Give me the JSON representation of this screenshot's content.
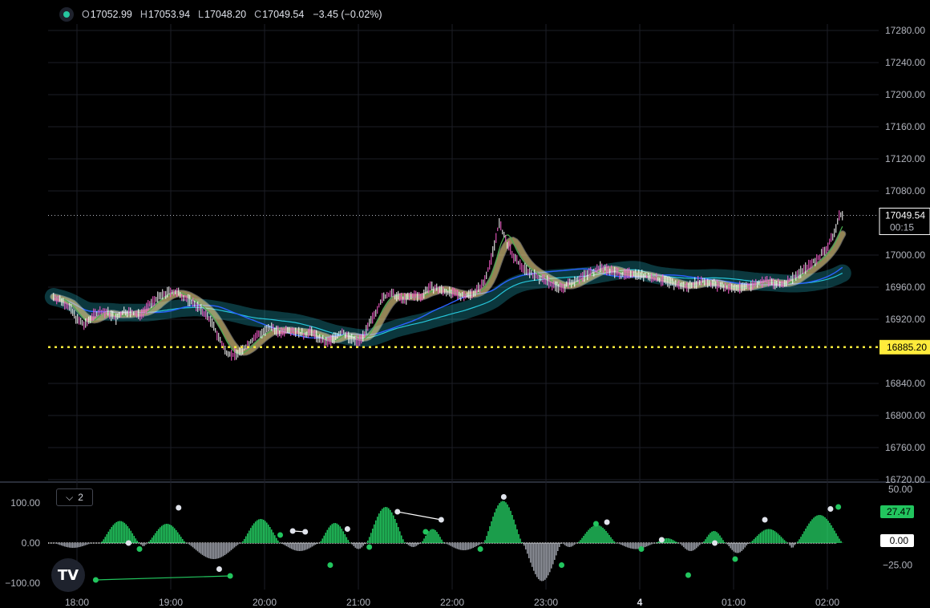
{
  "legend": {
    "o_label": "O",
    "o_value": "17052.99",
    "h_label": "H",
    "h_value": "17053.94",
    "l_label": "L",
    "l_value": "17048.20",
    "c_label": "C",
    "c_value": "17049.54",
    "change": "−3.45 (−0.02%)"
  },
  "pane_toggle": {
    "count": "2"
  },
  "logo": {
    "text": "TV"
  },
  "chart_data": [
    {
      "type": "line",
      "name": "price",
      "y_axis_ticks": [
        "17280.00",
        "17240.00",
        "17200.00",
        "17160.00",
        "17120.00",
        "17080.00",
        "17000.00",
        "16960.00",
        "16920.00",
        "16840.00",
        "16800.00",
        "16760.00",
        "16720.00"
      ],
      "y_range": [
        16720,
        17280
      ],
      "x_axis_ticks": [
        "18:00",
        "19:00",
        "20:00",
        "21:00",
        "22:00",
        "23:00",
        "4",
        "01:00",
        "02:00"
      ],
      "last_price_label": "17049.54",
      "countdown_label": "00:15",
      "support_level": 16885.2,
      "support_label": "16885.20",
      "price_path": [
        [
          "17:45",
          16948
        ],
        [
          "17:50",
          16943
        ],
        [
          "17:55",
          16935
        ],
        [
          "18:00",
          16920
        ],
        [
          "18:05",
          16912
        ],
        [
          "18:10",
          16925
        ],
        [
          "18:15",
          16930
        ],
        [
          "18:20",
          16928
        ],
        [
          "18:25",
          16920
        ],
        [
          "18:30",
          16930
        ],
        [
          "18:35",
          16928
        ],
        [
          "18:40",
          16925
        ],
        [
          "18:45",
          16935
        ],
        [
          "18:50",
          16945
        ],
        [
          "18:55",
          16950
        ],
        [
          "19:00",
          16955
        ],
        [
          "19:05",
          16952
        ],
        [
          "19:10",
          16945
        ],
        [
          "19:15",
          16940
        ],
        [
          "19:20",
          16930
        ],
        [
          "19:25",
          16920
        ],
        [
          "19:30",
          16900
        ],
        [
          "19:35",
          16880
        ],
        [
          "19:40",
          16875
        ],
        [
          "19:45",
          16880
        ],
        [
          "19:50",
          16890
        ],
        [
          "19:55",
          16900
        ],
        [
          "20:00",
          16905
        ],
        [
          "20:05",
          16910
        ],
        [
          "20:10",
          16902
        ],
        [
          "20:15",
          16908
        ],
        [
          "20:20",
          16905
        ],
        [
          "20:25",
          16900
        ],
        [
          "20:30",
          16905
        ],
        [
          "20:35",
          16895
        ],
        [
          "20:40",
          16890
        ],
        [
          "20:45",
          16898
        ],
        [
          "20:50",
          16905
        ],
        [
          "20:55",
          16895
        ],
        [
          "21:00",
          16892
        ],
        [
          "21:05",
          16905
        ],
        [
          "21:10",
          16925
        ],
        [
          "21:15",
          16945
        ],
        [
          "21:20",
          16952
        ],
        [
          "21:25",
          16948
        ],
        [
          "21:30",
          16945
        ],
        [
          "21:35",
          16950
        ],
        [
          "21:40",
          16948
        ],
        [
          "21:45",
          16960
        ],
        [
          "21:50",
          16958
        ],
        [
          "21:55",
          16955
        ],
        [
          "22:00",
          16952
        ],
        [
          "22:05",
          16950
        ],
        [
          "22:10",
          16950
        ],
        [
          "22:15",
          16955
        ],
        [
          "22:20",
          16965
        ],
        [
          "22:25",
          16995
        ],
        [
          "22:30",
          17040
        ],
        [
          "22:35",
          17015
        ],
        [
          "22:40",
          16995
        ],
        [
          "22:45",
          16985
        ],
        [
          "22:50",
          16978
        ],
        [
          "22:55",
          16972
        ],
        [
          "23:00",
          16968
        ],
        [
          "23:05",
          16962
        ],
        [
          "23:10",
          16958
        ],
        [
          "23:15",
          16965
        ],
        [
          "23:20",
          16970
        ],
        [
          "23:25",
          16975
        ],
        [
          "23:30",
          16980
        ],
        [
          "23:35",
          16985
        ],
        [
          "23:40",
          16982
        ],
        [
          "23:45",
          16978
        ],
        [
          "23:50",
          16975
        ],
        [
          "23:55",
          16978
        ],
        [
          "00:00",
          16975
        ],
        [
          "00:05",
          16973
        ],
        [
          "00:10",
          16970
        ],
        [
          "00:15",
          16968
        ],
        [
          "00:20",
          16965
        ],
        [
          "00:25",
          16962
        ],
        [
          "00:30",
          16960
        ],
        [
          "00:35",
          16965
        ],
        [
          "00:40",
          16968
        ],
        [
          "00:45",
          16965
        ],
        [
          "00:50",
          16962
        ],
        [
          "00:55",
          16960
        ],
        [
          "01:00",
          16958
        ],
        [
          "01:05",
          16960
        ],
        [
          "01:10",
          16962
        ],
        [
          "01:15",
          16965
        ],
        [
          "01:20",
          16968
        ],
        [
          "01:25",
          16965
        ],
        [
          "01:30",
          16962
        ],
        [
          "01:35",
          16968
        ],
        [
          "01:40",
          16975
        ],
        [
          "01:45",
          16982
        ],
        [
          "01:50",
          16990
        ],
        [
          "01:55",
          16998
        ],
        [
          "02:00",
          17010
        ],
        [
          "02:05",
          17030
        ],
        [
          "02:08",
          17052
        ],
        [
          "02:10",
          17049.54
        ]
      ],
      "series_colors": {
        "bars": "#ff5fd2",
        "ma_fast": "#ffd54f",
        "ma_mid": "#ffffff",
        "ma_slow": "#2962ff",
        "ma_long": "#26c6da",
        "band": "#26c6da"
      }
    },
    {
      "type": "bar",
      "name": "oscillator",
      "y_axis_ticks": [
        "100.00",
        "0.00",
        "−100.00"
      ],
      "right_axis_ticks": [
        "50.00",
        "−25.00"
      ],
      "value_label": "27.47",
      "zero_label": "0.00",
      "positive_color": "#22c55e",
      "negative_color": "#9598a1",
      "waves": [
        {
          "x0": "17:45",
          "x1": "18:10",
          "peak": -12
        },
        {
          "x0": "18:15",
          "x1": "18:40",
          "peak": 55
        },
        {
          "x0": "18:40",
          "x1": "18:45",
          "peak": -8
        },
        {
          "x0": "18:45",
          "x1": "19:10",
          "peak": 48
        },
        {
          "x0": "19:10",
          "x1": "19:45",
          "peak": -40
        },
        {
          "x0": "19:45",
          "x1": "20:10",
          "peak": 60
        },
        {
          "x0": "20:10",
          "x1": "20:35",
          "peak": -20
        },
        {
          "x0": "20:35",
          "x1": "20:55",
          "peak": 50
        },
        {
          "x0": "20:55",
          "x1": "21:05",
          "peak": -15
        },
        {
          "x0": "21:05",
          "x1": "21:30",
          "peak": 90
        },
        {
          "x0": "21:30",
          "x1": "21:40",
          "peak": -10
        },
        {
          "x0": "21:40",
          "x1": "21:55",
          "peak": 35
        },
        {
          "x0": "21:55",
          "x1": "22:20",
          "peak": -18
        },
        {
          "x0": "22:20",
          "x1": "22:45",
          "peak": 105
        },
        {
          "x0": "22:45",
          "x1": "23:10",
          "peak": -95
        },
        {
          "x0": "23:10",
          "x1": "23:20",
          "peak": -10
        },
        {
          "x0": "23:20",
          "x1": "23:45",
          "peak": 45
        },
        {
          "x0": "23:45",
          "x1": "00:10",
          "peak": -15
        },
        {
          "x0": "00:10",
          "x1": "00:25",
          "peak": 12
        },
        {
          "x0": "00:25",
          "x1": "00:40",
          "peak": -20
        },
        {
          "x0": "00:40",
          "x1": "00:55",
          "peak": 30
        },
        {
          "x0": "00:55",
          "x1": "01:10",
          "peak": -25
        },
        {
          "x0": "01:10",
          "x1": "01:35",
          "peak": 35
        },
        {
          "x0": "01:35",
          "x1": "01:40",
          "peak": -12
        },
        {
          "x0": "01:40",
          "x1": "02:10",
          "peak": 70
        }
      ],
      "dots": [
        {
          "t": "17:47",
          "v": -82,
          "c": "green"
        },
        {
          "t": "17:55",
          "v": -82,
          "c": "white"
        },
        {
          "t": "18:12",
          "v": -92,
          "c": "green"
        },
        {
          "t": "18:33",
          "v": 0,
          "c": "white"
        },
        {
          "t": "18:40",
          "v": -15,
          "c": "green"
        },
        {
          "t": "19:05",
          "v": 88,
          "c": "white"
        },
        {
          "t": "19:31",
          "v": -65,
          "c": "white"
        },
        {
          "t": "19:38",
          "v": -82,
          "c": "green"
        },
        {
          "t": "20:10",
          "v": 20,
          "c": "green"
        },
        {
          "t": "20:18",
          "v": 30,
          "c": "white"
        },
        {
          "t": "20:26",
          "v": 28,
          "c": "white"
        },
        {
          "t": "20:42",
          "v": -55,
          "c": "green"
        },
        {
          "t": "20:53",
          "v": 35,
          "c": "white"
        },
        {
          "t": "21:07",
          "v": -10,
          "c": "green"
        },
        {
          "t": "21:25",
          "v": 78,
          "c": "white"
        },
        {
          "t": "21:43",
          "v": 28,
          "c": "green"
        },
        {
          "t": "21:53",
          "v": 58,
          "c": "white"
        },
        {
          "t": "22:18",
          "v": -15,
          "c": "green"
        },
        {
          "t": "22:33",
          "v": 115,
          "c": "white"
        },
        {
          "t": "23:10",
          "v": -55,
          "c": "green"
        },
        {
          "t": "23:32",
          "v": 48,
          "c": "green"
        },
        {
          "t": "23:39",
          "v": 52,
          "c": "white"
        },
        {
          "t": "00:01",
          "v": -15,
          "c": "green"
        },
        {
          "t": "00:14",
          "v": 8,
          "c": "white"
        },
        {
          "t": "00:31",
          "v": -80,
          "c": "green"
        },
        {
          "t": "00:48",
          "v": 0,
          "c": "white"
        },
        {
          "t": "01:01",
          "v": -40,
          "c": "green"
        },
        {
          "t": "01:20",
          "v": 58,
          "c": "white"
        },
        {
          "t": "02:02",
          "v": 85,
          "c": "white"
        },
        {
          "t": "02:07",
          "v": 90,
          "c": "green"
        }
      ],
      "dot_lines": [
        {
          "t0": "18:12",
          "v0": -92,
          "t1": "19:38",
          "v1": -82,
          "c": "green"
        },
        {
          "t0": "21:25",
          "v0": 78,
          "t1": "21:53",
          "v1": 58,
          "c": "white"
        },
        {
          "t0": "20:18",
          "v0": 30,
          "t1": "20:26",
          "v1": 28,
          "c": "white"
        }
      ]
    }
  ]
}
